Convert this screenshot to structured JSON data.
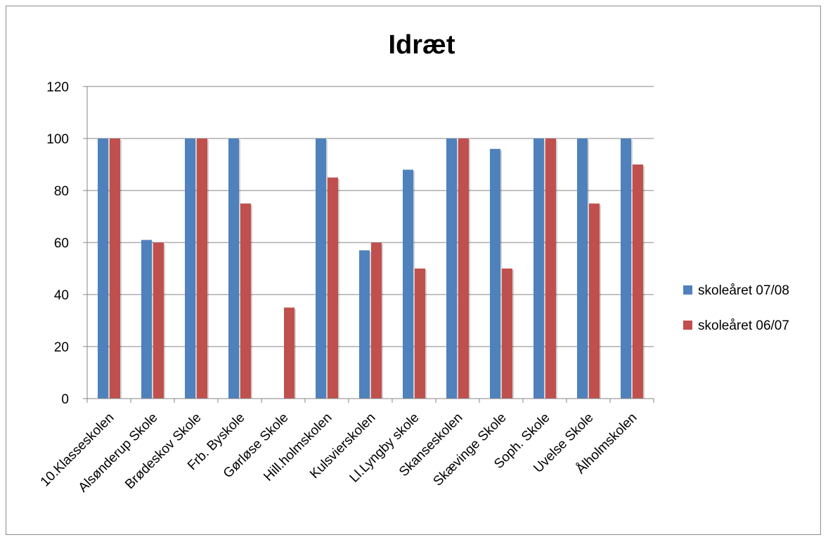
{
  "chart_data": {
    "type": "bar",
    "title": "Idræt",
    "xlabel": "",
    "ylabel": "",
    "ylim": [
      0,
      120
    ],
    "yticks": [
      0,
      20,
      40,
      60,
      80,
      100,
      120
    ],
    "grid": true,
    "legend_position": "right",
    "categories": [
      "10.Klasseskolen",
      "Alsønderup Skole",
      "Brødeskov Skole",
      "Frb. Byskole",
      "Gørløse Skole",
      "Hill.holmskolen",
      "Kulsvierskolen",
      "Ll.Lyngby skole",
      "Skanseskolen",
      "Skævinge Skole",
      "Soph. Skole",
      "Uvelse Skole",
      "Ålholmskolen"
    ],
    "series": [
      {
        "name": "skoleåret 07/08",
        "color": "#4f81bd",
        "values": [
          100,
          61,
          100,
          100,
          0,
          100,
          57,
          88,
          100,
          96,
          100,
          100,
          100
        ]
      },
      {
        "name": "skoleåret 06/07",
        "color": "#c0504d",
        "values": [
          100,
          60,
          100,
          75,
          35,
          85,
          60,
          50,
          100,
          50,
          100,
          75,
          90
        ]
      }
    ]
  }
}
